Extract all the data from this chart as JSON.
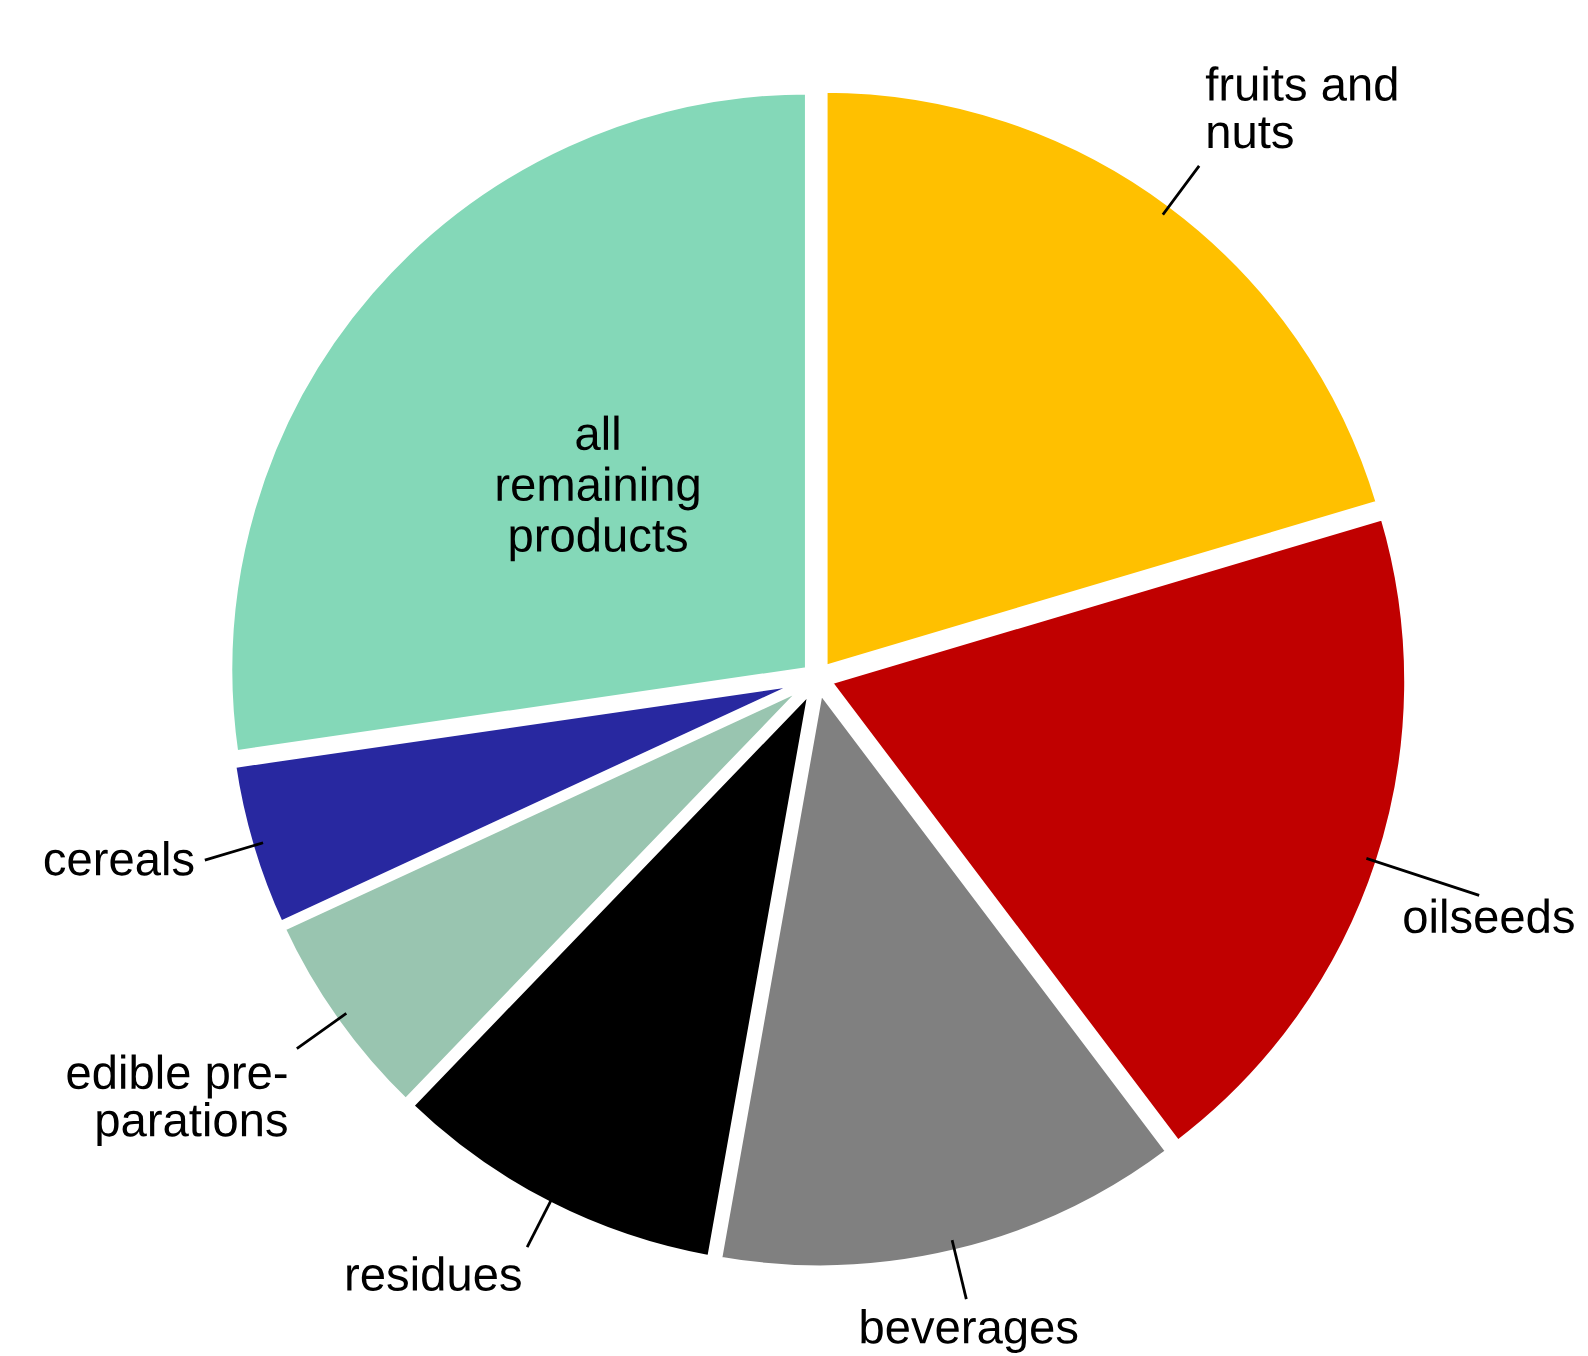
{
  "chart_data": {
    "type": "pie",
    "categories": [
      "fruits and\nnuts",
      "oilseeds",
      "beverages",
      "residues",
      "edible pre-\nparations",
      "cereals",
      "all\nremaining\nproducts"
    ],
    "values": [
      20.4,
      19.3,
      13.1,
      9.4,
      5.9,
      4.6,
      27.3
    ],
    "colors": [
      "#ffc000",
      "#c00000",
      "#808080",
      "#000000",
      "#99c5b0",
      "#2828a0",
      "#84d8b8"
    ],
    "legend": false
  }
}
